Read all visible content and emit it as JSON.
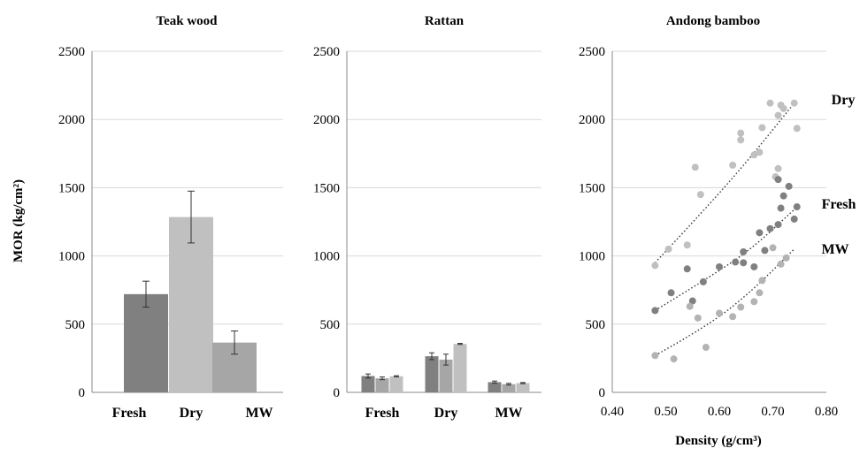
{
  "chart_data": [
    {
      "type": "bar",
      "title": "Teak wood",
      "ylabel": "MOR (kg/cm²)",
      "ylim": [
        0,
        2500
      ],
      "yticks": [
        "0",
        "500",
        "1000",
        "1500",
        "2000",
        "2500"
      ],
      "categories": [
        "Fresh",
        "Dry",
        "MW"
      ],
      "values": [
        720,
        1285,
        365
      ],
      "errors": [
        95,
        190,
        85
      ],
      "colors": [
        "#808080",
        "#c0c0c0",
        "#a6a6a6"
      ],
      "grid": true
    },
    {
      "type": "bar",
      "title": "Rattan",
      "ylim": [
        0,
        2500
      ],
      "yticks": [
        "0",
        "500",
        "1000",
        "1500",
        "2000",
        "2500"
      ],
      "categories": [
        "Fresh",
        "Dry",
        "MW"
      ],
      "series": [
        {
          "values": [
            120,
            265,
            75
          ],
          "errors": [
            15,
            25,
            8
          ],
          "color": "#808080"
        },
        {
          "values": [
            103,
            240,
            60
          ],
          "errors": [
            10,
            40,
            6
          ],
          "color": "#a6a6a6"
        },
        {
          "values": [
            118,
            355,
            68
          ],
          "errors": [
            4,
            4,
            4
          ],
          "color": "#c0c0c0"
        }
      ],
      "grid": true
    },
    {
      "type": "scatter",
      "title": "Andong bamboo",
      "xlabel": "Density (g/cm³)",
      "xlim": [
        0.4,
        0.8
      ],
      "ylim": [
        0,
        2500
      ],
      "xticks": [
        "0.40",
        "0.50",
        "0.60",
        "0.70",
        "0.80"
      ],
      "yticks": [
        "0",
        "500",
        "1000",
        "1500",
        "2000",
        "2500"
      ],
      "series": [
        {
          "name": "Dry",
          "color": "#c0c0c0",
          "points": [
            [
              0.48,
              930
            ],
            [
              0.505,
              1050
            ],
            [
              0.54,
              1080
            ],
            [
              0.555,
              1650
            ],
            [
              0.565,
              1450
            ],
            [
              0.625,
              1665
            ],
            [
              0.64,
              1850
            ],
            [
              0.64,
              1900
            ],
            [
              0.665,
              1740
            ],
            [
              0.675,
              1760
            ],
            [
              0.68,
              1940
            ],
            [
              0.695,
              2120
            ],
            [
              0.71,
              2030
            ],
            [
              0.715,
              2105
            ],
            [
              0.72,
              2080
            ],
            [
              0.745,
              1935
            ],
            [
              0.74,
              2120
            ],
            [
              0.71,
              1640
            ],
            [
              0.705,
              1580
            ]
          ],
          "trend": [
            [
              0.48,
              950
            ],
            [
              0.58,
              1370
            ],
            [
              0.66,
              1730
            ],
            [
              0.74,
              2120
            ]
          ]
        },
        {
          "name": "Fresh",
          "color": "#808080",
          "points": [
            [
              0.48,
              600
            ],
            [
              0.51,
              730
            ],
            [
              0.54,
              905
            ],
            [
              0.55,
              670
            ],
            [
              0.57,
              810
            ],
            [
              0.6,
              920
            ],
            [
              0.63,
              955
            ],
            [
              0.645,
              1030
            ],
            [
              0.645,
              950
            ],
            [
              0.665,
              920
            ],
            [
              0.675,
              1170
            ],
            [
              0.685,
              1040
            ],
            [
              0.695,
              1200
            ],
            [
              0.71,
              1230
            ],
            [
              0.715,
              1350
            ],
            [
              0.72,
              1440
            ],
            [
              0.73,
              1510
            ],
            [
              0.74,
              1270
            ],
            [
              0.745,
              1360
            ],
            [
              0.71,
              1560
            ]
          ],
          "trend": [
            [
              0.48,
              600
            ],
            [
              0.58,
              840
            ],
            [
              0.66,
              1050
            ],
            [
              0.74,
              1340
            ]
          ]
        },
        {
          "name": "MW",
          "color": "#b3b3b3",
          "points": [
            [
              0.48,
              270
            ],
            [
              0.515,
              245
            ],
            [
              0.545,
              630
            ],
            [
              0.56,
              545
            ],
            [
              0.575,
              330
            ],
            [
              0.6,
              580
            ],
            [
              0.625,
              555
            ],
            [
              0.64,
              625
            ],
            [
              0.665,
              665
            ],
            [
              0.675,
              730
            ],
            [
              0.68,
              820
            ],
            [
              0.7,
              1060
            ],
            [
              0.715,
              940
            ],
            [
              0.725,
              985
            ]
          ],
          "trend": [
            [
              0.48,
              270
            ],
            [
              0.58,
              490
            ],
            [
              0.66,
              740
            ],
            [
              0.74,
              1050
            ]
          ]
        }
      ],
      "grid": true
    }
  ]
}
